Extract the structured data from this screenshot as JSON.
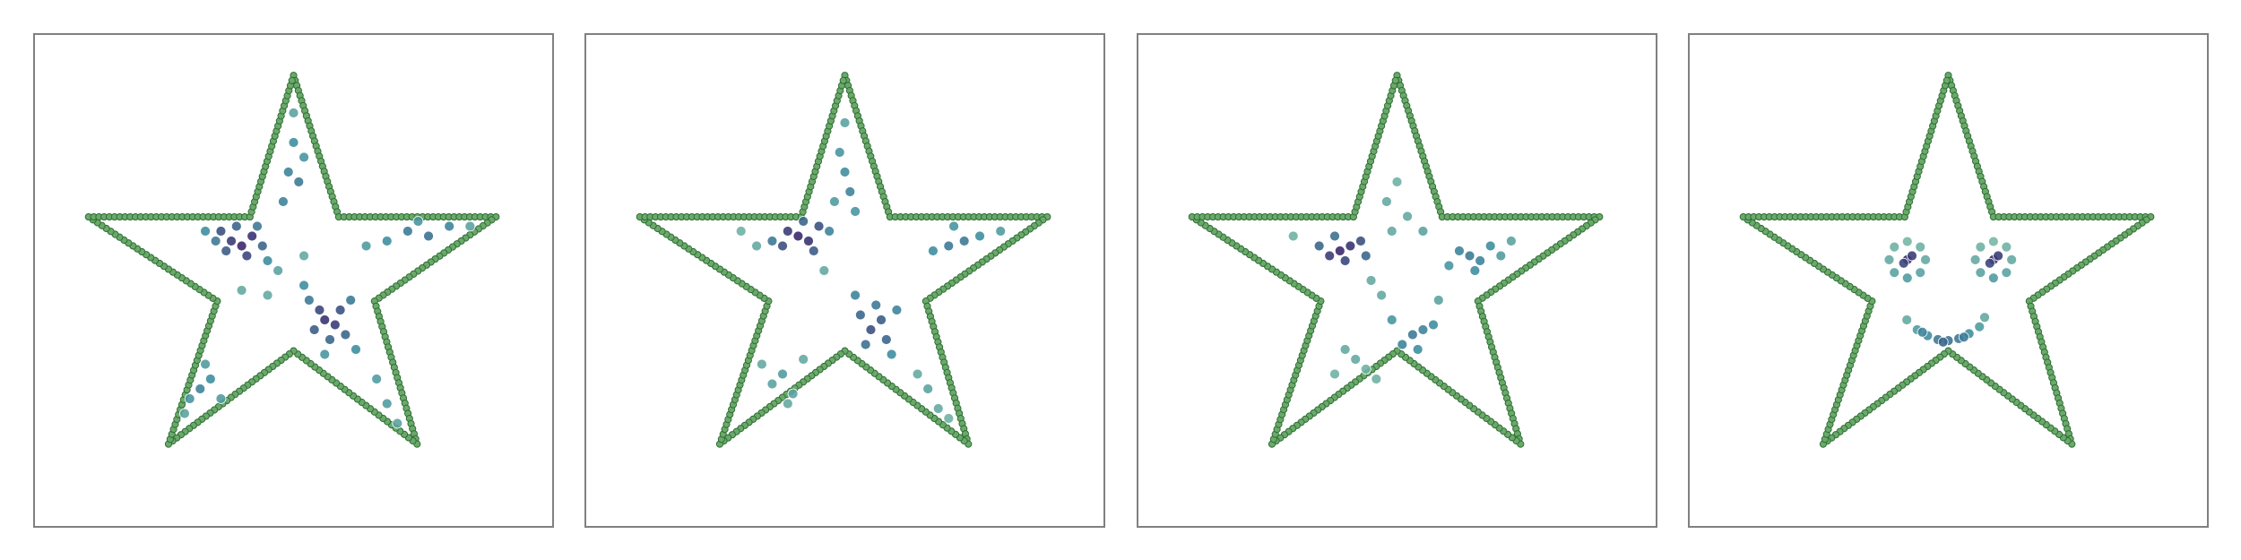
{
  "chart_data": [
    {
      "type": "scatter",
      "xlim": [
        0,
        100
      ],
      "ylim": [
        0,
        100
      ],
      "cmap": [
        "#9ed2a5",
        "#3f8fa0",
        "#3b2a6e"
      ],
      "x": [
        38,
        40,
        42,
        36,
        41,
        44,
        37,
        39,
        43,
        35,
        33,
        45,
        56,
        58,
        55,
        59,
        54,
        60,
        57,
        53,
        61,
        62,
        56,
        52,
        50,
        49,
        51,
        48,
        52,
        50,
        72,
        76,
        80,
        68,
        74,
        84,
        64,
        32,
        34,
        30,
        36,
        33,
        29,
        68,
        70,
        66,
        47,
        52,
        45,
        40
      ],
      "y": [
        58,
        57,
        59,
        60,
        55,
        57,
        56,
        61,
        61,
        58,
        60,
        54,
        42,
        41,
        44,
        44,
        40,
        39,
        38,
        46,
        46,
        36,
        35,
        49,
        78,
        72,
        70,
        66,
        75,
        84,
        60,
        59,
        61,
        58,
        62,
        61,
        57,
        28,
        30,
        26,
        26,
        33,
        23,
        25,
        21,
        30,
        52,
        55,
        47,
        48
      ],
      "c": [
        0.9,
        1,
        0.95,
        0.8,
        0.85,
        0.7,
        0.75,
        0.7,
        0.6,
        0.6,
        0.5,
        0.5,
        0.95,
        0.9,
        0.85,
        0.8,
        0.75,
        0.7,
        0.7,
        0.6,
        0.6,
        0.5,
        0.45,
        0.5,
        0.5,
        0.55,
        0.6,
        0.55,
        0.45,
        0.35,
        0.6,
        0.65,
        0.55,
        0.5,
        0.45,
        0.35,
        0.4,
        0.55,
        0.5,
        0.45,
        0.4,
        0.4,
        0.35,
        0.4,
        0.35,
        0.4,
        0.35,
        0.3,
        0.3,
        0.3
      ]
    },
    {
      "type": "scatter",
      "xlim": [
        0,
        100
      ],
      "ylim": [
        0,
        100
      ],
      "cmap": [
        "#9ed2a5",
        "#3f8fa0",
        "#3b2a6e"
      ],
      "x": [
        41,
        43,
        39,
        45,
        38,
        42,
        44,
        36,
        47,
        55,
        57,
        53,
        58,
        54,
        56,
        60,
        52,
        59,
        50,
        51,
        49,
        52,
        48,
        50,
        70,
        73,
        76,
        67,
        80,
        71,
        38,
        36,
        40,
        34,
        42,
        39,
        66,
        68,
        70,
        64,
        33,
        30,
        46
      ],
      "y": [
        59,
        58,
        60,
        61,
        57,
        62,
        56,
        58,
        60,
        40,
        42,
        43,
        38,
        37,
        45,
        44,
        47,
        35,
        72,
        68,
        76,
        64,
        66,
        82,
        57,
        58,
        59,
        56,
        60,
        61,
        31,
        29,
        27,
        33,
        34,
        25,
        28,
        24,
        22,
        31,
        57,
        60,
        52
      ],
      "c": [
        1,
        0.95,
        0.9,
        0.8,
        0.8,
        0.7,
        0.75,
        0.6,
        0.55,
        0.8,
        0.75,
        0.7,
        0.7,
        0.65,
        0.6,
        0.55,
        0.55,
        0.5,
        0.5,
        0.55,
        0.45,
        0.45,
        0.4,
        0.35,
        0.6,
        0.6,
        0.5,
        0.5,
        0.4,
        0.45,
        0.4,
        0.35,
        0.35,
        0.3,
        0.3,
        0.3,
        0.35,
        0.3,
        0.25,
        0.3,
        0.3,
        0.25,
        0.3
      ]
    },
    {
      "type": "scatter",
      "xlim": [
        0,
        100
      ],
      "ylim": [
        0,
        100
      ],
      "cmap": [
        "#9ed2a5",
        "#3f8fa0",
        "#3b2a6e"
      ],
      "x": [
        39,
        41,
        37,
        43,
        40,
        35,
        44,
        38,
        64,
        66,
        62,
        68,
        65,
        60,
        70,
        53,
        55,
        51,
        57,
        54,
        49,
        42,
        44,
        40,
        46,
        38,
        48,
        50,
        52,
        49,
        55,
        58,
        47,
        45,
        72,
        30
      ],
      "y": [
        56,
        57,
        55,
        58,
        54,
        57,
        55,
        59,
        55,
        54,
        56,
        57,
        52,
        53,
        55,
        39,
        40,
        37,
        41,
        36,
        42,
        34,
        32,
        36,
        30,
        31,
        66,
        70,
        63,
        60,
        60,
        46,
        47,
        50,
        58,
        59
      ],
      "c": [
        1,
        0.95,
        0.9,
        0.8,
        0.85,
        0.7,
        0.7,
        0.65,
        0.6,
        0.55,
        0.55,
        0.5,
        0.5,
        0.45,
        0.4,
        0.6,
        0.55,
        0.55,
        0.5,
        0.5,
        0.45,
        0.3,
        0.25,
        0.3,
        0.25,
        0.25,
        0.3,
        0.25,
        0.3,
        0.3,
        0.35,
        0.35,
        0.3,
        0.3,
        0.35,
        0.25
      ]
    },
    {
      "type": "scatter",
      "xlim": [
        0,
        100
      ],
      "ylim": [
        0,
        100
      ],
      "cmap": [
        "#9ed2a5",
        "#3f8fa0",
        "#3b2a6e"
      ],
      "x": [
        45.6,
        44.6,
        42.1,
        39.6,
        38.6,
        39.6,
        42.1,
        44.6,
        42.1,
        43,
        41.4,
        62.2,
        61.2,
        58.7,
        56.2,
        55.2,
        56.2,
        58.7,
        61.2,
        58.7,
        59.6,
        58,
        42,
        44,
        46,
        48,
        50,
        52,
        54,
        56,
        57,
        45,
        49,
        53
      ],
      "y": [
        54.2,
        56.8,
        57.9,
        56.8,
        54.2,
        51.6,
        50.5,
        51.6,
        54.2,
        55,
        53.5,
        54.2,
        56.8,
        57.9,
        56.8,
        54.2,
        51.6,
        50.5,
        51.6,
        54.2,
        55,
        53.5,
        42,
        40,
        38.8,
        38,
        37.8,
        38.2,
        39.2,
        40.6,
        42.5,
        39.5,
        37.5,
        38.5
      ],
      "c": [
        0.3,
        0.25,
        0.2,
        0.25,
        0.3,
        0.35,
        0.4,
        0.35,
        1,
        0.9,
        0.85,
        0.3,
        0.25,
        0.2,
        0.25,
        0.3,
        0.35,
        0.4,
        0.35,
        1,
        0.9,
        0.85,
        0.3,
        0.4,
        0.5,
        0.6,
        0.65,
        0.6,
        0.5,
        0.4,
        0.3,
        0.55,
        0.7,
        0.6
      ]
    }
  ]
}
